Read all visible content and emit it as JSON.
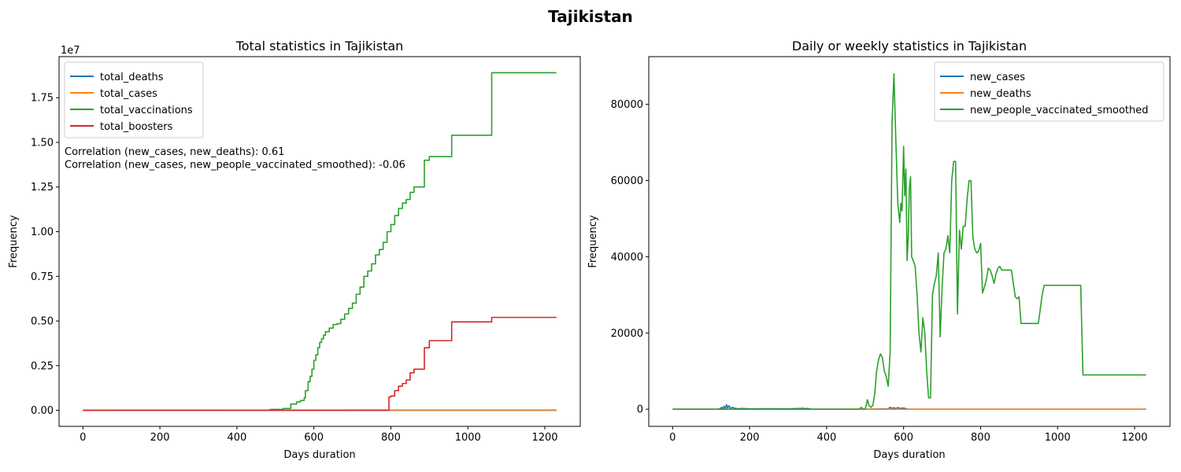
{
  "suptitle": "Tajikistan",
  "chart_data": [
    {
      "type": "line",
      "title": "Total statistics in Tajikistan",
      "xlabel": "Days duration",
      "ylabel": "Frequency",
      "y_offset_label": "1e7",
      "xlim": [
        -62,
        1292
      ],
      "ylim": [
        -900000,
        19800000
      ],
      "x_ticks": [
        0,
        200,
        400,
        600,
        800,
        1000,
        1200
      ],
      "x_tick_labels": [
        "0",
        "200",
        "400",
        "600",
        "800",
        "1000",
        "1200"
      ],
      "y_ticks": [
        0,
        2500000,
        5000000,
        7500000,
        10000000,
        12500000,
        15000000,
        17500000
      ],
      "y_tick_labels": [
        "0.00",
        "0.25",
        "0.50",
        "0.75",
        "1.00",
        "1.25",
        "1.50",
        "1.75"
      ],
      "grid": false,
      "legend_position": "upper-left",
      "annotations": [
        "Correlation (new_cases, new_deaths): 0.61",
        "Correlation (new_cases, new_people_vaccinated_smoothed): -0.06"
      ],
      "series": [
        {
          "name": "total_deaths",
          "color": "#1f77b4",
          "x": [
            0,
            1230
          ],
          "y": [
            0,
            125
          ]
        },
        {
          "name": "total_cases",
          "color": "#ff7f0e",
          "x": [
            0,
            100,
            1230
          ],
          "y": [
            0,
            10000,
            17800
          ]
        },
        {
          "name": "total_vaccinations",
          "color": "#2ca02c",
          "step": true,
          "x": [
            485,
            520,
            540,
            555,
            565,
            575,
            578,
            585,
            590,
            595,
            600,
            605,
            610,
            615,
            620,
            625,
            630,
            640,
            650,
            660,
            670,
            680,
            690,
            700,
            710,
            720,
            730,
            740,
            750,
            760,
            770,
            780,
            790,
            800,
            810,
            820,
            830,
            840,
            850,
            860,
            870,
            887,
            900,
            958,
            1062,
            1230
          ],
          "y": [
            50000,
            100000,
            350000,
            470000,
            550000,
            700000,
            1100000,
            1600000,
            1900000,
            2300000,
            2800000,
            3100000,
            3500000,
            3800000,
            4000000,
            4200000,
            4400000,
            4600000,
            4800000,
            4850000,
            5100000,
            5400000,
            5700000,
            6000000,
            6500000,
            6900000,
            7500000,
            7800000,
            8200000,
            8700000,
            9000000,
            9400000,
            10000000,
            10400000,
            10900000,
            11300000,
            11600000,
            11800000,
            12200000,
            12500000,
            12500000,
            14000000,
            14200000,
            15400000,
            18900000,
            18900000
          ]
        },
        {
          "name": "total_boosters",
          "color": "#d62728",
          "step": true,
          "x": [
            0,
            795,
            800,
            810,
            820,
            830,
            840,
            850,
            860,
            887,
            900,
            958,
            1062,
            1230
          ],
          "y": [
            0,
            750000,
            800000,
            1100000,
            1350000,
            1500000,
            1700000,
            2100000,
            2300000,
            3500000,
            3900000,
            4950000,
            5200000,
            5200000
          ]
        }
      ]
    },
    {
      "type": "line",
      "title": "Daily or weekly statistics in Tajikistan",
      "xlabel": "Days duration",
      "ylabel": "Frequency",
      "xlim": [
        -62,
        1292
      ],
      "ylim": [
        -4500,
        92500
      ],
      "x_ticks": [
        0,
        200,
        400,
        600,
        800,
        1000,
        1200
      ],
      "x_tick_labels": [
        "0",
        "200",
        "400",
        "600",
        "800",
        "1000",
        "1200"
      ],
      "y_ticks": [
        0,
        20000,
        40000,
        60000,
        80000
      ],
      "y_tick_labels": [
        "0",
        "20000",
        "40000",
        "60000",
        "80000"
      ],
      "grid": false,
      "legend_position": "upper-right",
      "series": [
        {
          "name": "new_cases",
          "color": "#1f77b4",
          "x": [
            0,
            120,
            128,
            131,
            134,
            137,
            140,
            143,
            146,
            150,
            155,
            160,
            170,
            180,
            200,
            250,
            300,
            340,
            345,
            350,
            360,
            400,
            500,
            560,
            565,
            570,
            575,
            580,
            585,
            590,
            600,
            610,
            650,
            1230
          ],
          "y": [
            0,
            0,
            500,
            100,
            800,
            200,
            1200,
            300,
            900,
            200,
            500,
            300,
            100,
            200,
            100,
            150,
            100,
            250,
            100,
            200,
            50,
            0,
            0,
            100,
            500,
            200,
            400,
            150,
            450,
            200,
            300,
            50,
            0,
            0
          ]
        },
        {
          "name": "new_deaths",
          "color": "#ff7f0e",
          "x": [
            0,
            1230
          ],
          "y": [
            0,
            0
          ]
        },
        {
          "name": "new_people_vaccinated_smoothed",
          "color": "#2ca02c",
          "x": [
            0,
            485,
            490,
            495,
            500,
            503,
            506,
            510,
            515,
            520,
            525,
            530,
            535,
            540,
            545,
            550,
            555,
            560,
            565,
            570,
            575,
            580,
            585,
            590,
            593,
            596,
            600,
            603,
            606,
            609,
            612,
            615,
            618,
            621,
            625,
            630,
            635,
            640,
            645,
            650,
            655,
            660,
            665,
            670,
            675,
            680,
            685,
            690,
            695,
            700,
            705,
            710,
            715,
            720,
            725,
            730,
            735,
            740,
            745,
            750,
            755,
            760,
            765,
            770,
            775,
            780,
            785,
            790,
            795,
            800,
            805,
            810,
            815,
            820,
            825,
            830,
            835,
            840,
            845,
            850,
            855,
            860,
            870,
            880,
            890,
            895,
            900,
            905,
            910,
            920,
            930,
            940,
            950,
            960,
            965,
            970,
            980,
            1000,
            1020,
            1040,
            1060,
            1066,
            1070,
            1100,
            1150,
            1200,
            1230
          ],
          "y": [
            0,
            0,
            500,
            0,
            0,
            1000,
            2500,
            1000,
            500,
            1000,
            4000,
            10000,
            13000,
            14500,
            13500,
            10000,
            8500,
            6000,
            15000,
            75000,
            88000,
            70000,
            54000,
            49000,
            54000,
            52000,
            69000,
            56000,
            63000,
            39000,
            45000,
            58000,
            61000,
            40000,
            39000,
            37500,
            30000,
            20000,
            15000,
            24000,
            20000,
            10000,
            3000,
            3000,
            30000,
            33000,
            35000,
            41000,
            19000,
            32000,
            41000,
            42000,
            45500,
            41000,
            60000,
            65000,
            65000,
            25000,
            47000,
            42000,
            48000,
            48000,
            55000,
            60000,
            60000,
            45000,
            42000,
            41000,
            41500,
            43500,
            30500,
            32000,
            34000,
            37000,
            36500,
            35000,
            33000,
            35500,
            37000,
            37500,
            36500,
            36500,
            36500,
            36500,
            29500,
            29000,
            29500,
            22500,
            22500,
            22500,
            22500,
            22500,
            22500,
            30000,
            32500,
            32500,
            32500,
            32500,
            32500,
            32500,
            32500,
            9000,
            9000,
            9000,
            9000,
            9000,
            9000
          ]
        }
      ]
    }
  ]
}
